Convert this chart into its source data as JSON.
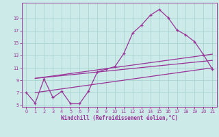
{
  "xlabel": "Windchill (Refroidissement éolien,°C)",
  "bg_color": "#cceae7",
  "grid_color": "#aad4d0",
  "line_color": "#993399",
  "x_data": [
    0,
    1,
    2,
    3,
    4,
    5,
    6,
    7,
    8,
    9,
    10,
    11,
    12,
    13,
    14,
    15,
    16,
    17,
    18,
    19,
    20,
    21
  ],
  "main_curve": [
    7.0,
    5.3,
    9.2,
    6.2,
    7.2,
    5.2,
    5.2,
    7.2,
    10.3,
    10.8,
    11.2,
    13.3,
    16.6,
    17.9,
    19.5,
    20.4,
    19.1,
    17.1,
    16.3,
    15.2,
    13.1,
    10.8
  ],
  "upper_line_x": [
    1,
    21
  ],
  "upper_line_y": [
    9.3,
    13.2
  ],
  "mid_line_x": [
    1,
    21
  ],
  "mid_line_y": [
    9.3,
    12.2
  ],
  "lower_line_x": [
    1,
    21
  ],
  "lower_line_y": [
    7.0,
    11.0
  ],
  "ylim": [
    5,
    21
  ],
  "xlim": [
    -0.5,
    21.5
  ],
  "yticks": [
    5,
    7,
    9,
    11,
    13,
    15,
    17,
    19
  ],
  "xticks": [
    0,
    1,
    2,
    3,
    4,
    5,
    6,
    7,
    8,
    9,
    10,
    11,
    12,
    13,
    14,
    15,
    16,
    17,
    18,
    19,
    20,
    21
  ]
}
